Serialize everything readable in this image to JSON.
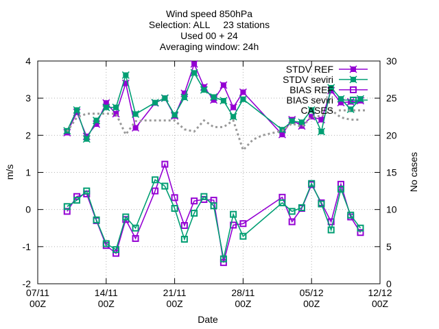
{
  "chart_data": {
    "type": "line",
    "title_lines": [
      "Wind speed 850hPa",
      "Selection: ALL     23 stations",
      "Used 00 + 24",
      "Averaging window: 24h"
    ],
    "xlabel": "Date",
    "ylabel": "m/s",
    "y2label": "No cases",
    "xlim": [
      0,
      35
    ],
    "ylim": [
      -2,
      4
    ],
    "y2lim": [
      0,
      30
    ],
    "x_ticks": [
      {
        "x": 0,
        "line1": "07/11",
        "line2": "00Z"
      },
      {
        "x": 7,
        "line1": "14/11",
        "line2": "00Z"
      },
      {
        "x": 14,
        "line1": "21/11",
        "line2": "00Z"
      },
      {
        "x": 21,
        "line1": "28/11",
        "line2": "00Z"
      },
      {
        "x": 28,
        "line1": "05/12",
        "line2": "00Z"
      },
      {
        "x": 35,
        "line1": "12/12",
        "line2": "00Z"
      }
    ],
    "y_ticks": [
      "-2",
      "-1",
      "0",
      "1",
      "2",
      "3",
      "4"
    ],
    "y2_ticks": [
      "0",
      "5",
      "10",
      "15",
      "20",
      "25",
      "30"
    ],
    "grid": true,
    "legend_position": "top-right",
    "series": [
      {
        "name": "STDV REF",
        "color": "#9400d3",
        "marker": "cross-box",
        "axis": "y",
        "points": [
          [
            3,
            2.07
          ],
          [
            4,
            2.62
          ],
          [
            5,
            1.97
          ],
          [
            6,
            2.3
          ],
          [
            7,
            2.87
          ],
          [
            8,
            2.58
          ],
          [
            9,
            3.4
          ],
          [
            10,
            2.2
          ],
          [
            12,
            2.87
          ],
          [
            13,
            3
          ],
          [
            14,
            2.52
          ],
          [
            15,
            3.13
          ],
          [
            16,
            3.92
          ],
          [
            17,
            3.3
          ],
          [
            18,
            2.95
          ],
          [
            19,
            3.35
          ],
          [
            20,
            2.75
          ],
          [
            21,
            3.16
          ],
          [
            25,
            2.02
          ],
          [
            26,
            2.42
          ],
          [
            27,
            2.25
          ],
          [
            28,
            2.5
          ],
          [
            29,
            2.42
          ],
          [
            30,
            3.2
          ],
          [
            31,
            2.88
          ],
          [
            32,
            2.9
          ],
          [
            33,
            2.93
          ]
        ]
      },
      {
        "name": "STDV seviri",
        "color": "#009e73",
        "marker": "cross-box",
        "axis": "y",
        "points": [
          [
            3,
            2.12
          ],
          [
            4,
            2.68
          ],
          [
            5,
            1.9
          ],
          [
            6,
            2.4
          ],
          [
            7,
            2.75
          ],
          [
            8,
            2.75
          ],
          [
            9,
            3.62
          ],
          [
            10,
            2.57
          ],
          [
            12,
            2.88
          ],
          [
            13,
            3
          ],
          [
            14,
            2.55
          ],
          [
            15,
            3.02
          ],
          [
            16,
            3.68
          ],
          [
            17,
            3.22
          ],
          [
            18,
            3.03
          ],
          [
            19,
            2.93
          ],
          [
            20,
            2.5
          ],
          [
            21,
            2.97
          ],
          [
            25,
            2.15
          ],
          [
            26,
            2.38
          ],
          [
            27,
            2.35
          ],
          [
            28,
            2.68
          ],
          [
            29,
            2.1
          ],
          [
            30,
            3.28
          ],
          [
            31,
            2.98
          ],
          [
            32,
            2.7
          ],
          [
            33,
            2.98
          ]
        ]
      },
      {
        "name": "BIAS REF",
        "color": "#9400d3",
        "marker": "square",
        "axis": "y",
        "points": [
          [
            3,
            -0.05
          ],
          [
            4,
            0.35
          ],
          [
            5,
            0.42
          ],
          [
            6,
            -0.3
          ],
          [
            7,
            -0.97
          ],
          [
            8,
            -1.18
          ],
          [
            9,
            -0.27
          ],
          [
            10,
            -0.78
          ],
          [
            12,
            0.5
          ],
          [
            13,
            1.22
          ],
          [
            14,
            0.32
          ],
          [
            15,
            -0.43
          ],
          [
            16,
            0.23
          ],
          [
            17,
            0.27
          ],
          [
            18,
            0.25
          ],
          [
            19,
            -1.43
          ],
          [
            20,
            -0.42
          ],
          [
            21,
            -0.38
          ],
          [
            25,
            0.33
          ],
          [
            26,
            -0.33
          ],
          [
            27,
            0.03
          ],
          [
            28,
            0.67
          ],
          [
            29,
            0.18
          ],
          [
            30,
            -0.33
          ],
          [
            31,
            0.68
          ],
          [
            32,
            -0.2
          ],
          [
            33,
            -0.62
          ]
        ]
      },
      {
        "name": "BIAS seviri",
        "color": "#009e73",
        "marker": "square",
        "axis": "y",
        "points": [
          [
            3,
            0.08
          ],
          [
            4,
            0.25
          ],
          [
            5,
            0.5
          ],
          [
            6,
            -0.28
          ],
          [
            7,
            -0.92
          ],
          [
            8,
            -1.08
          ],
          [
            9,
            -0.2
          ],
          [
            10,
            -0.5
          ],
          [
            12,
            0.8
          ],
          [
            13,
            0.63
          ],
          [
            14,
            0.03
          ],
          [
            15,
            -0.8
          ],
          [
            16,
            -0.1
          ],
          [
            17,
            0.35
          ],
          [
            18,
            0.1
          ],
          [
            19,
            -1.33
          ],
          [
            20,
            -0.13
          ],
          [
            21,
            -0.72
          ],
          [
            25,
            0.18
          ],
          [
            26,
            -0.05
          ],
          [
            27,
            0.05
          ],
          [
            28,
            0.7
          ],
          [
            29,
            0.15
          ],
          [
            30,
            -0.55
          ],
          [
            31,
            0.55
          ],
          [
            32,
            -0.15
          ],
          [
            33,
            -0.5
          ]
        ]
      },
      {
        "name": "CASES",
        "color": "#999999",
        "marker": "none",
        "dash": "dotted",
        "axis": "y2",
        "points": [
          [
            3,
            20.5
          ],
          [
            4,
            22.4
          ],
          [
            5,
            22.9
          ],
          [
            6,
            22.9
          ],
          [
            7,
            22.9
          ],
          [
            8,
            22.9
          ],
          [
            9,
            20.1
          ],
          [
            10,
            21.9
          ],
          [
            11,
            22
          ],
          [
            12,
            22
          ],
          [
            13,
            22
          ],
          [
            14,
            22
          ],
          [
            15,
            20.8
          ],
          [
            16,
            20.5
          ],
          [
            17,
            22
          ],
          [
            18,
            21.1
          ],
          [
            19,
            21.1
          ],
          [
            20,
            22
          ],
          [
            21,
            18
          ],
          [
            22,
            19.4
          ],
          [
            23,
            20
          ],
          [
            24,
            20.3
          ],
          [
            25,
            20.6
          ],
          [
            26,
            21.6
          ],
          [
            27,
            21.1
          ],
          [
            28,
            22.5
          ],
          [
            29,
            22.6
          ],
          [
            30,
            23.4
          ],
          [
            31,
            22.4
          ],
          [
            32,
            22.1
          ],
          [
            33,
            22.1
          ]
        ]
      }
    ]
  }
}
